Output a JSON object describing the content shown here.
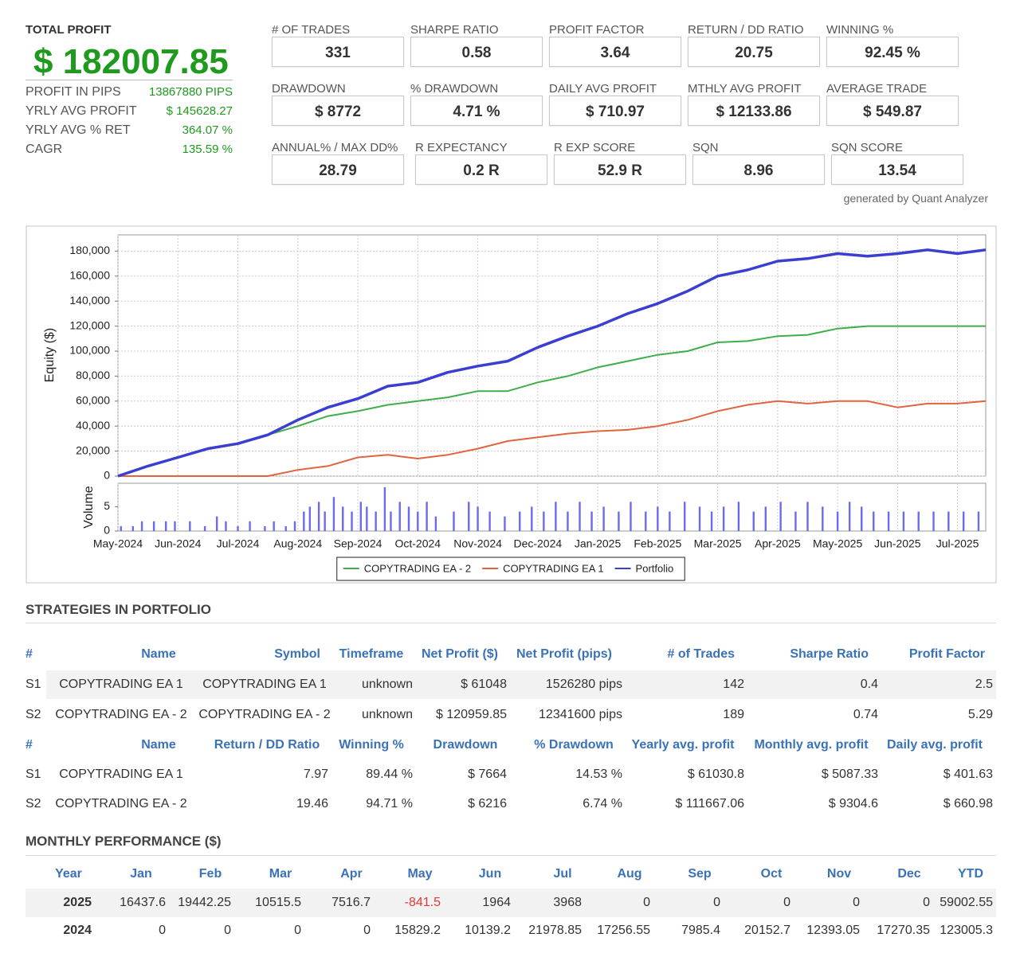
{
  "header": {
    "total_label": "TOTAL PROFIT",
    "total_value": "$ 182007.85",
    "stats": [
      {
        "label": "PROFIT IN PIPS",
        "value": "13867880 PIPS"
      },
      {
        "label": "YRLY AVG PROFIT",
        "value": "$ 145628.27"
      },
      {
        "label": "YRLY AVG % RET",
        "value": "364.07 %"
      },
      {
        "label": "CAGR",
        "value": "135.59 %"
      }
    ]
  },
  "metrics": [
    [
      {
        "label": "# OF TRADES",
        "value": "331"
      },
      {
        "label": "SHARPE RATIO",
        "value": "0.58"
      },
      {
        "label": "PROFIT FACTOR",
        "value": "3.64"
      },
      {
        "label": "RETURN / DD RATIO",
        "value": "20.75"
      },
      {
        "label": "WINNING %",
        "value": "92.45 %"
      }
    ],
    [
      {
        "label": "DRAWDOWN",
        "value": "$ 8772"
      },
      {
        "label": "% DRAWDOWN",
        "value": "4.71 %"
      },
      {
        "label": "DAILY AVG PROFIT",
        "value": "$ 710.97"
      },
      {
        "label": "MTHLY AVG PROFIT",
        "value": "$ 12133.86"
      },
      {
        "label": "AVERAGE TRADE",
        "value": "$ 549.87"
      }
    ],
    [
      {
        "label": "ANNUAL% / MAX DD%",
        "value": "28.79"
      },
      {
        "label": "R EXPECTANCY",
        "value": "0.2 R"
      },
      {
        "label": "R EXP SCORE",
        "value": "52.9 R"
      },
      {
        "label": "SQN",
        "value": "8.96"
      },
      {
        "label": "SQN SCORE",
        "value": "13.54"
      }
    ]
  ],
  "generated": "generated by Quant Analyzer",
  "chart_data": {
    "type": "line",
    "y_label": "Equity ($)",
    "legend": "bottom",
    "grid": true,
    "x": [
      0,
      0.5,
      1,
      1.5,
      2,
      2.5,
      3,
      3.5,
      4,
      4.5,
      5,
      5.5,
      6,
      6.5,
      7,
      7.5,
      8,
      8.5,
      9,
      9.5,
      10,
      10.5,
      11,
      11.5,
      12,
      12.5,
      13,
      13.5,
      14,
      14.47
    ],
    "xlim": [
      0,
      14.47
    ],
    "xticks": [
      {
        "value": 0,
        "label": "May-2024"
      },
      {
        "value": 1,
        "label": "Jun-2024"
      },
      {
        "value": 2,
        "label": "Jul-2024"
      },
      {
        "value": 3,
        "label": "Aug-2024"
      },
      {
        "value": 4,
        "label": "Sep-2024"
      },
      {
        "value": 5,
        "label": "Oct-2024"
      },
      {
        "value": 6,
        "label": "Nov-2024"
      },
      {
        "value": 7,
        "label": "Dec-2024"
      },
      {
        "value": 8,
        "label": "Jan-2025"
      },
      {
        "value": 9,
        "label": "Feb-2025"
      },
      {
        "value": 10,
        "label": "Mar-2025"
      },
      {
        "value": 11,
        "label": "Apr-2025"
      },
      {
        "value": 12,
        "label": "May-2025"
      },
      {
        "value": 13,
        "label": "Jun-2025"
      },
      {
        "value": 14,
        "label": "Jul-2025"
      }
    ],
    "ylim": [
      0,
      193000
    ],
    "yticks": [
      0,
      {
        "value": 20000,
        "label": "20,000"
      },
      {
        "value": 40000,
        "label": "40,000"
      },
      {
        "value": 60000,
        "label": "60,000"
      },
      {
        "value": 80000,
        "label": "80,000"
      },
      {
        "value": 100000,
        "label": "100,000"
      },
      {
        "value": 120000,
        "label": "120,000"
      },
      {
        "value": 140000,
        "label": "140,000"
      },
      {
        "value": 160000,
        "label": "160,000"
      },
      {
        "value": 180000,
        "label": "180,000"
      }
    ],
    "series": [
      {
        "name": "COPYTRADING EA - 2",
        "color": "#3fae4a",
        "values": [
          0,
          8000,
          15000,
          22000,
          26000,
          33000,
          40000,
          48000,
          52000,
          57000,
          60000,
          63000,
          68000,
          68000,
          75000,
          80000,
          87000,
          92000,
          97000,
          100000,
          107000,
          108000,
          112000,
          113000,
          118000,
          120000,
          120000,
          120000,
          120000,
          120000
        ]
      },
      {
        "name": "COPYTRADING EA 1",
        "color": "#e0643f",
        "values": [
          0,
          0,
          0,
          0,
          0,
          0,
          5000,
          8000,
          15000,
          17000,
          14000,
          17000,
          22000,
          28000,
          31000,
          34000,
          36000,
          37000,
          40000,
          45000,
          52000,
          57000,
          60000,
          58000,
          60000,
          60000,
          55000,
          58000,
          58000,
          60000
        ]
      },
      {
        "name": "Portfolio",
        "color": "#3a3fd0",
        "values": [
          0,
          8000,
          15000,
          22000,
          26000,
          33000,
          45000,
          55000,
          62000,
          72000,
          75000,
          83000,
          88000,
          92000,
          103000,
          112000,
          120000,
          130000,
          138000,
          148000,
          160000,
          165000,
          172000,
          174000,
          178000,
          176000,
          178000,
          181000,
          178000,
          181000
        ]
      }
    ],
    "volume": {
      "label": "Volume",
      "color": "#6b6bf0",
      "ylim": [
        0,
        9.8
      ],
      "yticks": [
        0,
        5
      ],
      "x": [
        0.05,
        0.25,
        0.4,
        0.6,
        0.8,
        0.95,
        1.2,
        1.45,
        1.65,
        1.8,
        2.0,
        2.2,
        2.45,
        2.6,
        2.8,
        2.95,
        3.1,
        3.2,
        3.35,
        3.45,
        3.6,
        3.75,
        3.9,
        4.05,
        4.15,
        4.3,
        4.45,
        4.55,
        4.7,
        4.85,
        5.0,
        5.15,
        5.3,
        5.6,
        5.85,
        6.0,
        6.2,
        6.45,
        6.7,
        6.9,
        7.1,
        7.3,
        7.5,
        7.7,
        7.9,
        8.1,
        8.35,
        8.55,
        8.8,
        9.0,
        9.2,
        9.45,
        9.7,
        9.9,
        10.1,
        10.35,
        10.6,
        10.8,
        11.05,
        11.3,
        11.5,
        11.75,
        12.0,
        12.2,
        12.4,
        12.6,
        12.85,
        13.1,
        13.35,
        13.6,
        13.85,
        14.1,
        14.35
      ],
      "values": [
        1,
        1,
        2,
        2,
        2,
        2,
        2,
        1,
        3,
        2,
        1,
        2,
        1,
        2,
        1,
        2,
        4,
        5,
        6,
        4,
        7,
        5,
        4,
        6,
        5,
        4,
        9,
        4,
        6,
        5,
        4,
        6,
        3,
        4,
        6,
        5,
        4,
        3,
        4,
        5,
        4,
        6,
        4,
        6,
        4,
        5,
        4,
        6,
        4,
        5,
        4,
        6,
        5,
        4,
        5,
        6,
        4,
        5,
        6,
        4,
        6,
        5,
        4,
        6,
        5,
        4,
        4,
        4,
        4,
        4,
        4,
        4,
        4
      ]
    }
  },
  "strategies": {
    "title": "STRATEGIES IN PORTFOLIO",
    "table1": {
      "headers": [
        "#",
        "Name",
        "Symbol",
        "Timeframe",
        "Net Profit ($)",
        "Net Profit (pips)",
        "# of Trades",
        "Sharpe Ratio",
        "Profit Factor"
      ],
      "rows": [
        [
          "S1",
          "COPYTRADING EA 1",
          "COPYTRADING EA 1",
          "unknown",
          "$ 61048",
          "1526280 pips",
          "142",
          "0.4",
          "2.5"
        ],
        [
          "S2",
          "COPYTRADING EA - 2",
          "COPYTRADING EA - 2",
          "unknown",
          "$ 120959.85",
          "12341600 pips",
          "189",
          "0.74",
          "5.29"
        ]
      ]
    },
    "table2": {
      "headers": [
        "#",
        "Name",
        "Return / DD Ratio",
        "Winning %",
        "Drawdown",
        "% Drawdown",
        "Yearly avg. profit",
        "Monthly avg. profit",
        "Daily avg. profit"
      ],
      "rows": [
        [
          "S1",
          "COPYTRADING EA 1",
          "7.97",
          "89.44 %",
          "$ 7664",
          "14.53 %",
          "$ 61030.8",
          "$ 5087.33",
          "$ 401.63"
        ],
        [
          "S2",
          "COPYTRADING EA - 2",
          "19.46",
          "94.71 %",
          "$ 6216",
          "6.74 %",
          "$ 111667.06",
          "$ 9304.6",
          "$ 660.98"
        ]
      ]
    }
  },
  "monthly": {
    "title": "MONTHLY PERFORMANCE ($)",
    "headers": [
      "Year",
      "Jan",
      "Feb",
      "Mar",
      "Apr",
      "May",
      "Jun",
      "Jul",
      "Aug",
      "Sep",
      "Oct",
      "Nov",
      "Dec",
      "YTD"
    ],
    "rows": [
      [
        "2025",
        "16437.6",
        "19442.25",
        "10515.5",
        "7516.7",
        "-841.5",
        "1964",
        "3968",
        "0",
        "0",
        "0",
        "0",
        "0",
        "59002.55"
      ],
      [
        "2024",
        "0",
        "0",
        "0",
        "0",
        "15829.2",
        "10139.2",
        "21978.85",
        "17256.55",
        "7985.4",
        "20152.7",
        "12393.05",
        "17270.35",
        "123005.3"
      ]
    ]
  }
}
